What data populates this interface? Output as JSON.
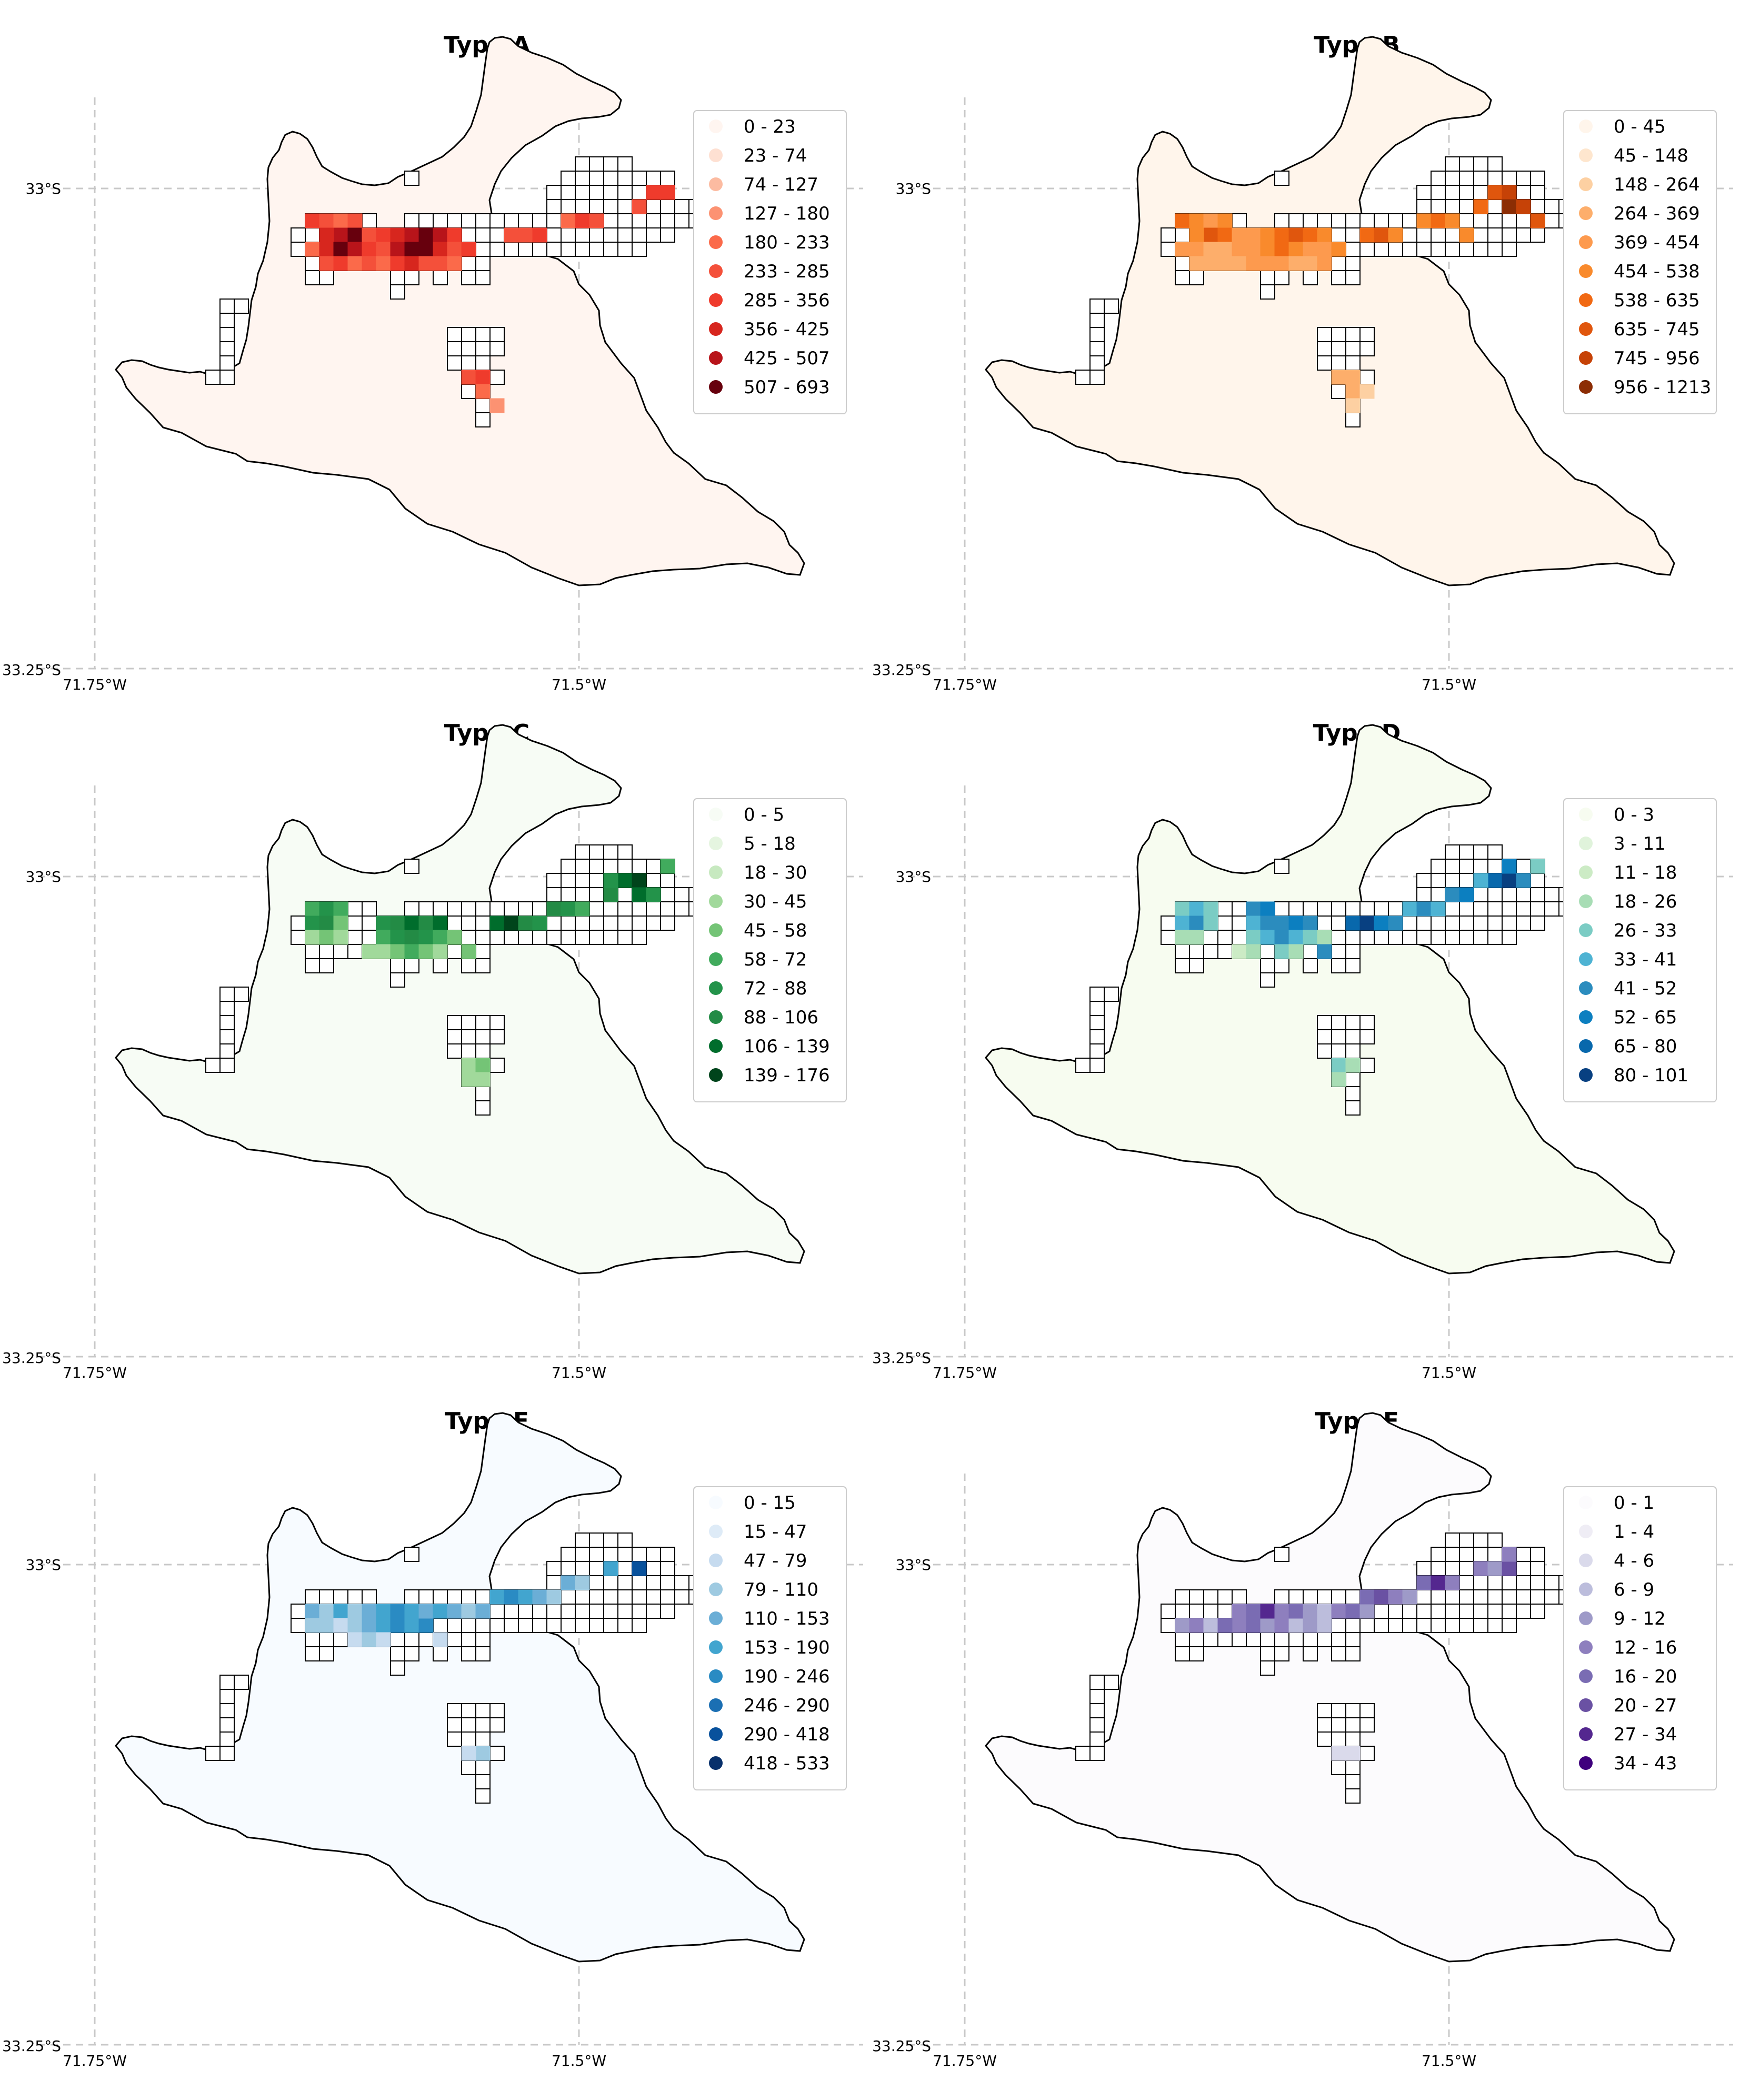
{
  "panels": [
    {
      "title": "Type A",
      "legend": [
        "0 - 23",
        "23 - 74",
        "74 - 127",
        "127 - 180",
        "180 - 233",
        "233 - 285",
        "285 - 356",
        "356 - 425",
        "425 - 507",
        "507 - 693"
      ],
      "palette": [
        "#fff5f0",
        "#fee0d2",
        "#fcbba1",
        "#fc9272",
        "#fb6a4a",
        "#f4503a",
        "#ef3b2c",
        "#d7261e",
        "#b8141a",
        "#67000d"
      ],
      "base_color": "#fff5f0",
      "cells": [
        [
          5,
          3,
          6
        ],
        [
          6,
          3,
          5
        ],
        [
          7,
          3,
          4
        ],
        [
          8,
          3,
          5
        ],
        [
          7,
          4,
          8
        ],
        [
          8,
          4,
          9
        ],
        [
          6,
          4,
          7
        ],
        [
          9,
          4,
          5
        ],
        [
          10,
          4,
          6
        ],
        [
          11,
          4,
          7
        ],
        [
          12,
          4,
          8
        ],
        [
          13,
          4,
          9
        ],
        [
          14,
          4,
          8
        ],
        [
          15,
          4,
          6
        ],
        [
          5,
          5,
          4
        ],
        [
          6,
          5,
          7
        ],
        [
          7,
          5,
          9
        ],
        [
          8,
          5,
          8
        ],
        [
          9,
          5,
          6
        ],
        [
          10,
          5,
          5
        ],
        [
          11,
          5,
          8
        ],
        [
          12,
          5,
          9
        ],
        [
          13,
          5,
          9
        ],
        [
          14,
          5,
          7
        ],
        [
          15,
          5,
          5
        ],
        [
          16,
          5,
          6
        ],
        [
          6,
          6,
          5
        ],
        [
          7,
          6,
          6
        ],
        [
          8,
          6,
          4
        ],
        [
          9,
          6,
          5
        ],
        [
          10,
          6,
          4
        ],
        [
          11,
          6,
          6
        ],
        [
          12,
          6,
          7
        ],
        [
          13,
          6,
          5
        ],
        [
          14,
          6,
          5
        ],
        [
          15,
          6,
          4
        ],
        [
          19,
          4,
          5
        ],
        [
          20,
          4,
          5
        ],
        [
          21,
          4,
          6
        ],
        [
          23,
          3,
          4
        ],
        [
          24,
          3,
          6
        ],
        [
          25,
          3,
          5
        ],
        [
          28,
          2,
          5
        ],
        [
          29,
          1,
          6
        ],
        [
          30,
          1,
          6
        ],
        [
          16,
          14,
          5
        ],
        [
          17,
          14,
          6
        ],
        [
          17,
          15,
          4
        ],
        [
          18,
          16,
          3
        ]
      ]
    },
    {
      "title": "Type B",
      "legend": [
        "0 - 45",
        "45 - 148",
        "148 - 264",
        "264 - 369",
        "369 - 454",
        "454 - 538",
        "538 - 635",
        "635 - 745",
        "745 - 956",
        "956 - 1213"
      ],
      "palette": [
        "#fff5eb",
        "#fee6ce",
        "#fdd0a2",
        "#fdae6b",
        "#fd9a4e",
        "#f98a2c",
        "#f16913",
        "#e0560d",
        "#c64207",
        "#8c2d04"
      ],
      "base_color": "#fff5eb",
      "cells": [
        [
          5,
          3,
          6
        ],
        [
          6,
          3,
          5
        ],
        [
          7,
          3,
          4
        ],
        [
          8,
          3,
          5
        ],
        [
          7,
          4,
          7
        ],
        [
          8,
          4,
          6
        ],
        [
          6,
          4,
          5
        ],
        [
          9,
          4,
          4
        ],
        [
          10,
          4,
          4
        ],
        [
          11,
          4,
          5
        ],
        [
          12,
          4,
          6
        ],
        [
          13,
          4,
          7
        ],
        [
          14,
          4,
          6
        ],
        [
          15,
          4,
          5
        ],
        [
          5,
          5,
          4
        ],
        [
          6,
          5,
          4
        ],
        [
          7,
          5,
          3
        ],
        [
          8,
          5,
          3
        ],
        [
          9,
          5,
          4
        ],
        [
          10,
          5,
          4
        ],
        [
          11,
          5,
          5
        ],
        [
          12,
          5,
          6
        ],
        [
          13,
          5,
          5
        ],
        [
          14,
          5,
          4
        ],
        [
          15,
          5,
          4
        ],
        [
          16,
          5,
          5
        ],
        [
          6,
          6,
          3
        ],
        [
          7,
          6,
          3
        ],
        [
          8,
          6,
          3
        ],
        [
          9,
          6,
          3
        ],
        [
          10,
          6,
          4
        ],
        [
          11,
          6,
          4
        ],
        [
          12,
          6,
          4
        ],
        [
          13,
          6,
          3
        ],
        [
          14,
          6,
          3
        ],
        [
          15,
          6,
          4
        ],
        [
          18,
          4,
          6
        ],
        [
          19,
          4,
          7
        ],
        [
          20,
          4,
          5
        ],
        [
          22,
          3,
          5
        ],
        [
          23,
          3,
          6
        ],
        [
          24,
          3,
          5
        ],
        [
          27,
          1,
          7
        ],
        [
          28,
          1,
          8
        ],
        [
          28,
          2,
          9
        ],
        [
          29,
          2,
          8
        ],
        [
          30,
          3,
          7
        ],
        [
          26,
          2,
          6
        ],
        [
          25,
          4,
          5
        ],
        [
          16,
          14,
          3
        ],
        [
          17,
          14,
          3
        ],
        [
          17,
          15,
          3
        ],
        [
          18,
          15,
          2
        ],
        [
          17,
          16,
          2
        ]
      ]
    },
    {
      "title": "Type C",
      "legend": [
        "0 - 5",
        "5 - 18",
        "18 - 30",
        "30 - 45",
        "45 - 58",
        "58 - 72",
        "72 - 88",
        "88 - 106",
        "106 - 139",
        "139 - 176"
      ],
      "palette": [
        "#f7fcf5",
        "#e5f5e0",
        "#c7e9c0",
        "#a1d99b",
        "#74c476",
        "#41ab5d",
        "#23934a",
        "#238b45",
        "#006d2c",
        "#00441b"
      ],
      "base_color": "#f7fcf5",
      "cells": [
        [
          5,
          3,
          5
        ],
        [
          6,
          3,
          6
        ],
        [
          7,
          3,
          5
        ],
        [
          5,
          4,
          6
        ],
        [
          6,
          4,
          7
        ],
        [
          7,
          4,
          4
        ],
        [
          5,
          5,
          3
        ],
        [
          6,
          5,
          4
        ],
        [
          7,
          5,
          3
        ],
        [
          10,
          4,
          6
        ],
        [
          11,
          4,
          7
        ],
        [
          12,
          4,
          8
        ],
        [
          13,
          4,
          7
        ],
        [
          14,
          4,
          8
        ],
        [
          10,
          5,
          5
        ],
        [
          11,
          5,
          6
        ],
        [
          12,
          5,
          7
        ],
        [
          13,
          5,
          6
        ],
        [
          14,
          5,
          5
        ],
        [
          15,
          5,
          4
        ],
        [
          9,
          6,
          3
        ],
        [
          10,
          6,
          3
        ],
        [
          11,
          6,
          4
        ],
        [
          12,
          6,
          5
        ],
        [
          13,
          6,
          4
        ],
        [
          14,
          6,
          3
        ],
        [
          16,
          6,
          4
        ],
        [
          18,
          4,
          8
        ],
        [
          19,
          4,
          9
        ],
        [
          20,
          4,
          7
        ],
        [
          21,
          4,
          6
        ],
        [
          22,
          3,
          7
        ],
        [
          23,
          3,
          6
        ],
        [
          24,
          3,
          5
        ],
        [
          26,
          2,
          7
        ],
        [
          27,
          1,
          8
        ],
        [
          28,
          1,
          9
        ],
        [
          28,
          2,
          8
        ],
        [
          29,
          2,
          6
        ],
        [
          30,
          0,
          5
        ],
        [
          26,
          1,
          6
        ],
        [
          16,
          14,
          3
        ],
        [
          17,
          14,
          4
        ],
        [
          17,
          15,
          3
        ],
        [
          16,
          15,
          3
        ]
      ]
    },
    {
      "title": "Type D",
      "legend": [
        "0 - 3",
        "3 - 11",
        "11 - 18",
        "18 - 26",
        "26 - 33",
        "33 - 41",
        "41 - 52",
        "52 - 65",
        "65 - 80",
        "80 - 101"
      ],
      "palette": [
        "#f7fcf0",
        "#e0f3db",
        "#ccebc5",
        "#a8ddb5",
        "#7bccc4",
        "#4eb3d3",
        "#2b8cbe",
        "#0c7fc0",
        "#0868ac",
        "#084081"
      ],
      "base_color": "#f7fcf0",
      "cells": [
        [
          5,
          3,
          4
        ],
        [
          6,
          3,
          5
        ],
        [
          7,
          3,
          4
        ],
        [
          5,
          4,
          5
        ],
        [
          6,
          4,
          6
        ],
        [
          7,
          4,
          4
        ],
        [
          5,
          5,
          3
        ],
        [
          6,
          5,
          3
        ],
        [
          10,
          3,
          6
        ],
        [
          11,
          3,
          7
        ],
        [
          12,
          4,
          6
        ],
        [
          13,
          4,
          7
        ],
        [
          14,
          4,
          6
        ],
        [
          10,
          4,
          5
        ],
        [
          11,
          4,
          6
        ],
        [
          10,
          5,
          4
        ],
        [
          11,
          5,
          5
        ],
        [
          12,
          5,
          6
        ],
        [
          13,
          5,
          5
        ],
        [
          14,
          5,
          4
        ],
        [
          15,
          5,
          3
        ],
        [
          9,
          6,
          2
        ],
        [
          10,
          6,
          3
        ],
        [
          12,
          6,
          4
        ],
        [
          13,
          6,
          3
        ],
        [
          15,
          6,
          6
        ],
        [
          17,
          4,
          8
        ],
        [
          18,
          4,
          9
        ],
        [
          19,
          4,
          7
        ],
        [
          20,
          4,
          6
        ],
        [
          21,
          3,
          5
        ],
        [
          22,
          3,
          6
        ],
        [
          23,
          3,
          5
        ],
        [
          24,
          2,
          6
        ],
        [
          25,
          2,
          7
        ],
        [
          27,
          1,
          8
        ],
        [
          28,
          1,
          9
        ],
        [
          28,
          0,
          7
        ],
        [
          29,
          1,
          6
        ],
        [
          26,
          1,
          5
        ],
        [
          30,
          0,
          4
        ],
        [
          16,
          14,
          4
        ],
        [
          17,
          14,
          3
        ],
        [
          16,
          15,
          3
        ]
      ]
    },
    {
      "title": "Type E",
      "legend": [
        "0 - 15",
        "15 - 47",
        "47 - 79",
        "79 - 110",
        "110 - 153",
        "153 - 190",
        "190 - 246",
        "246 - 290",
        "290 - 418",
        "418 - 533"
      ],
      "palette": [
        "#f7fbff",
        "#deebf7",
        "#c6dbef",
        "#9ecae1",
        "#6baed6",
        "#42a5cf",
        "#2a8bc3",
        "#1b6fb3",
        "#08519c",
        "#08306b"
      ],
      "base_color": "#f7fbff",
      "cells": [
        [
          5,
          4,
          4
        ],
        [
          6,
          4,
          3
        ],
        [
          7,
          4,
          5
        ],
        [
          5,
          5,
          3
        ],
        [
          6,
          5,
          3
        ],
        [
          7,
          5,
          2
        ],
        [
          8,
          5,
          3
        ],
        [
          9,
          5,
          4
        ],
        [
          10,
          5,
          5
        ],
        [
          11,
          5,
          6
        ],
        [
          12,
          5,
          5
        ],
        [
          13,
          5,
          6
        ],
        [
          8,
          4,
          3
        ],
        [
          9,
          4,
          4
        ],
        [
          10,
          4,
          5
        ],
        [
          11,
          4,
          6
        ],
        [
          12,
          4,
          5
        ],
        [
          13,
          4,
          4
        ],
        [
          14,
          4,
          5
        ],
        [
          15,
          4,
          4
        ],
        [
          16,
          4,
          3
        ],
        [
          17,
          4,
          4
        ],
        [
          18,
          3,
          5
        ],
        [
          19,
          3,
          6
        ],
        [
          20,
          3,
          5
        ],
        [
          21,
          3,
          4
        ],
        [
          22,
          3,
          3
        ],
        [
          23,
          2,
          4
        ],
        [
          24,
          2,
          3
        ],
        [
          26,
          1,
          5
        ],
        [
          28,
          1,
          8
        ],
        [
          8,
          6,
          2
        ],
        [
          9,
          6,
          3
        ],
        [
          10,
          6,
          2
        ],
        [
          14,
          6,
          2
        ],
        [
          17,
          14,
          3
        ],
        [
          16,
          14,
          2
        ]
      ]
    },
    {
      "title": "Type F",
      "legend": [
        "0 - 1",
        "1 - 4",
        "4 - 6",
        "6 - 9",
        "9 - 12",
        "12 - 16",
        "16 - 20",
        "20 - 27",
        "27 - 34",
        "34 - 43"
      ],
      "palette": [
        "#fcfbfd",
        "#efedf5",
        "#dadaeb",
        "#bcbddc",
        "#9e9ac8",
        "#8e7fbe",
        "#7a6cb3",
        "#6a51a3",
        "#54278f",
        "#3f007d"
      ],
      "base_color": "#fcfbfd",
      "cells": [
        [
          5,
          5,
          4
        ],
        [
          6,
          5,
          5
        ],
        [
          7,
          5,
          3
        ],
        [
          8,
          5,
          4
        ],
        [
          9,
          5,
          5
        ],
        [
          10,
          5,
          6
        ],
        [
          11,
          5,
          4
        ],
        [
          12,
          5,
          5
        ],
        [
          13,
          5,
          3
        ],
        [
          14,
          5,
          4
        ],
        [
          15,
          5,
          3
        ],
        [
          9,
          4,
          5
        ],
        [
          10,
          4,
          6
        ],
        [
          11,
          4,
          8
        ],
        [
          12,
          4,
          5
        ],
        [
          13,
          4,
          6
        ],
        [
          14,
          4,
          4
        ],
        [
          15,
          4,
          3
        ],
        [
          16,
          4,
          5
        ],
        [
          17,
          4,
          6
        ],
        [
          18,
          4,
          4
        ],
        [
          18,
          3,
          6
        ],
        [
          19,
          3,
          7
        ],
        [
          20,
          3,
          5
        ],
        [
          21,
          3,
          4
        ],
        [
          22,
          2,
          6
        ],
        [
          23,
          2,
          8
        ],
        [
          24,
          2,
          5
        ],
        [
          26,
          1,
          5
        ],
        [
          27,
          1,
          4
        ],
        [
          28,
          1,
          7
        ],
        [
          28,
          0,
          5
        ],
        [
          8,
          5,
          6
        ],
        [
          16,
          14,
          2
        ],
        [
          17,
          14,
          2
        ]
      ]
    }
  ],
  "axes": {
    "lat_ticks": [
      "33°S",
      "33.25°S"
    ],
    "lon_ticks": [
      "71.75°W",
      "71.5°W"
    ]
  },
  "colors": {
    "grid": "#c8c8c8",
    "outline": "#000000"
  }
}
